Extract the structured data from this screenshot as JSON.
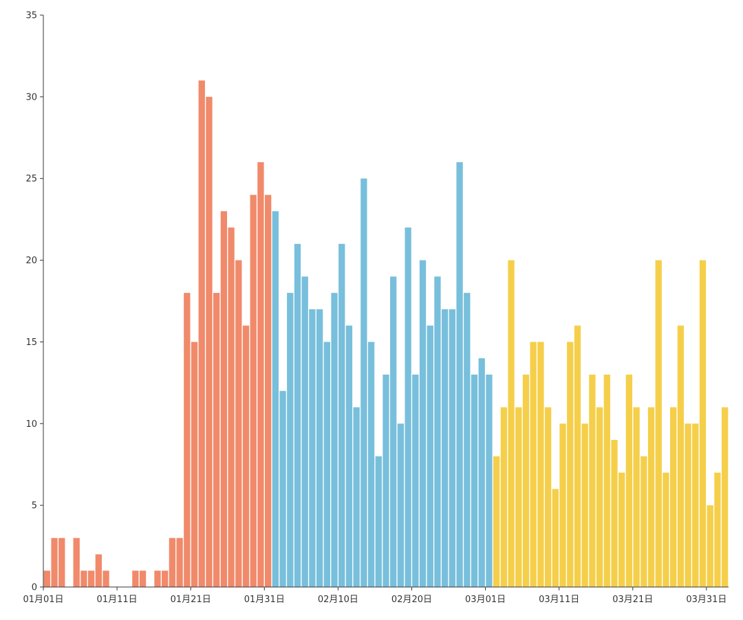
{
  "chart_data": {
    "type": "bar",
    "title": "",
    "xlabel": "",
    "ylabel": "",
    "ylim": [
      0,
      35
    ],
    "yticks": [
      0,
      5,
      10,
      15,
      20,
      25,
      30,
      35
    ],
    "grid": false,
    "x_tick_labels": [
      "01月01日",
      "01月11日",
      "01月21日",
      "01月31日",
      "02月10日",
      "02月20日",
      "03月01日",
      "03月11日",
      "03月21日",
      "03月31日"
    ],
    "series": [
      {
        "color": "#f08a6a",
        "values": [
          1,
          3,
          3,
          0,
          3,
          1,
          1,
          2,
          1,
          0,
          0,
          0,
          1,
          1,
          0,
          1,
          1,
          3,
          3,
          18,
          15,
          31,
          30,
          18,
          23,
          22,
          20,
          16,
          24,
          26,
          24
        ]
      },
      {
        "color": "#78bfdc",
        "values": [
          23,
          12,
          18,
          21,
          19,
          17,
          17,
          15,
          18,
          21,
          16,
          11,
          25,
          15,
          8,
          13,
          19,
          10,
          22,
          13,
          20,
          16,
          19,
          17,
          17,
          26,
          18,
          13,
          14,
          13
        ]
      },
      {
        "color": "#f5cf4a",
        "values": [
          8,
          11,
          20,
          11,
          13,
          15,
          15,
          11,
          6,
          10,
          15,
          16,
          10,
          13,
          11,
          13,
          9,
          7,
          13,
          11,
          8,
          11,
          20,
          7,
          11,
          16,
          10,
          10,
          20,
          5,
          7,
          11
        ]
      }
    ]
  }
}
